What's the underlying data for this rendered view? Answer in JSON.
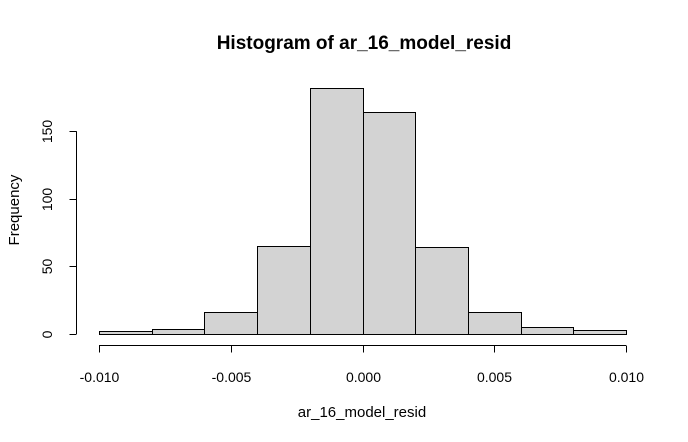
{
  "chart_data": {
    "type": "bar",
    "title": "Histogram of ar_16_model_resid",
    "xlabel": "ar_16_model_resid",
    "ylabel": "Frequency",
    "bin_edges": [
      -0.01,
      -0.008,
      -0.006,
      -0.004,
      -0.002,
      0.0,
      0.002,
      0.004,
      0.006,
      0.008,
      0.01
    ],
    "values": [
      2,
      4,
      16,
      65,
      182,
      164,
      64,
      16,
      5,
      3
    ],
    "xlim": [
      -0.01,
      0.01
    ],
    "ylim": [
      0,
      182
    ],
    "x_ticks": [
      -0.01,
      -0.005,
      0.0,
      0.005,
      0.01
    ],
    "x_tick_labels": [
      "-0.010",
      "-0.005",
      "0.000",
      "0.005",
      "0.010"
    ],
    "y_ticks": [
      0,
      50,
      100,
      150
    ],
    "y_tick_labels": [
      "0",
      "50",
      "100",
      "150"
    ],
    "bar_color": "#d3d3d3",
    "grid": false,
    "legend": "none"
  }
}
